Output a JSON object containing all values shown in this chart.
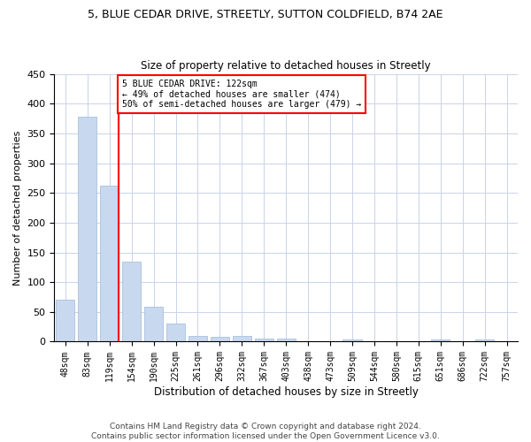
{
  "title1": "5, BLUE CEDAR DRIVE, STREETLY, SUTTON COLDFIELD, B74 2AE",
  "title2": "Size of property relative to detached houses in Streetly",
  "xlabel": "Distribution of detached houses by size in Streetly",
  "ylabel": "Number of detached properties",
  "bar_color": "#c8d9ef",
  "bar_edge_color": "#9db8d9",
  "grid_color": "#c8d4e8",
  "annotation_line_bin": 2,
  "annotation_text1": "5 BLUE CEDAR DRIVE: 122sqm",
  "annotation_text2": "← 49% of detached houses are smaller (474)",
  "annotation_text3": "50% of semi-detached houses are larger (479) →",
  "red_line_color": "red",
  "footer1": "Contains HM Land Registry data © Crown copyright and database right 2024.",
  "footer2": "Contains public sector information licensed under the Open Government Licence v3.0.",
  "ylim": [
    0,
    450
  ],
  "yticks": [
    0,
    50,
    100,
    150,
    200,
    250,
    300,
    350,
    400,
    450
  ],
  "categories": [
    "48sqm",
    "83sqm",
    "119sqm",
    "154sqm",
    "190sqm",
    "225sqm",
    "261sqm",
    "296sqm",
    "332sqm",
    "367sqm",
    "403sqm",
    "438sqm",
    "473sqm",
    "509sqm",
    "544sqm",
    "580sqm",
    "615sqm",
    "651sqm",
    "686sqm",
    "722sqm",
    "757sqm"
  ],
  "bar_values": [
    70,
    378,
    262,
    135,
    58,
    30,
    10,
    8,
    10,
    5,
    5,
    0,
    0,
    3,
    0,
    0,
    0,
    3,
    0,
    3,
    0
  ]
}
